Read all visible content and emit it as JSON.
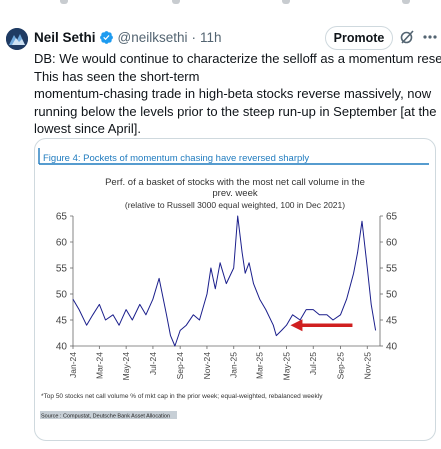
{
  "tweet": {
    "author_name": "Neil Sethi",
    "handle": "@neilksethi",
    "separator": "·",
    "time": "11h",
    "promote_label": "Promote",
    "text_lines": [
      "DB: We would continue to characterize the selloff as a momentum reset.",
      "This has seen the short-term",
      "momentum-chasing trade in high-beta stocks reverse massively, now",
      "running below the levels prior to the steep run-up in September [at the",
      "lowest since April]."
    ],
    "icons": {
      "verified": "verified-badge-icon",
      "grok": "grok-icon",
      "more": "more-options-icon"
    },
    "colors": {
      "verified": "#1d9bf0",
      "text": "#0f1419",
      "muted": "#536471"
    }
  },
  "figure": {
    "figure_title": "Figure 4: Pockets of momentum chasing have reversed sharply",
    "footnote": "*Top 50 stocks net call volume % of mkt cap in the prior week; equal-weighted, rebalanced weekly",
    "source": "Source : Compustat, Deutsche Bank Asset Allocation",
    "colors": {
      "line": "#1b1f8c",
      "title": "#1f7bbf",
      "arrow": "#d02020"
    }
  },
  "chart_data": {
    "type": "line",
    "title_lines": [
      "Perf. of a basket of stocks with the most net call volume in the",
      "prev. week"
    ],
    "subtitle": "(relative to Russell 3000 equal weighted, 100 in Dec  2021)",
    "xlabel": "",
    "ylabel": "",
    "ylim": [
      40,
      65
    ],
    "yticks": [
      40,
      45,
      50,
      55,
      60,
      65
    ],
    "y_axes": "left and right",
    "grid": false,
    "x_start": "2024-01-01",
    "x_end": "2025-11-30",
    "xticks": [
      "Jan-24",
      "Mar-24",
      "May-24",
      "Jul-24",
      "Sep-24",
      "Nov-24",
      "Jan-25",
      "Mar-25",
      "May-25",
      "Jul-25",
      "Sep-25",
      "Nov-25"
    ],
    "series": [
      {
        "name": "",
        "x": [
          "2024-01-01",
          "2024-01-15",
          "2024-02-01",
          "2024-02-15",
          "2024-03-01",
          "2024-03-15",
          "2024-04-01",
          "2024-04-15",
          "2024-05-01",
          "2024-05-15",
          "2024-06-01",
          "2024-06-15",
          "2024-07-01",
          "2024-07-15",
          "2024-08-01",
          "2024-08-10",
          "2024-08-20",
          "2024-09-01",
          "2024-09-15",
          "2024-10-01",
          "2024-10-15",
          "2024-11-01",
          "2024-11-10",
          "2024-11-20",
          "2024-12-01",
          "2024-12-15",
          "2025-01-01",
          "2025-01-10",
          "2025-01-20",
          "2025-01-27",
          "2025-02-05",
          "2025-02-15",
          "2025-03-01",
          "2025-03-15",
          "2025-04-01",
          "2025-04-08",
          "2025-04-20",
          "2025-05-01",
          "2025-05-15",
          "2025-06-01",
          "2025-06-15",
          "2025-07-01",
          "2025-07-15",
          "2025-08-01",
          "2025-08-15",
          "2025-09-01",
          "2025-09-15",
          "2025-10-01",
          "2025-10-10",
          "2025-10-20",
          "2025-11-01",
          "2025-11-10",
          "2025-11-20"
        ],
        "values": [
          49,
          47,
          44,
          46,
          48,
          45,
          46,
          44,
          47,
          45,
          48,
          46,
          49,
          53,
          46,
          42,
          40,
          43,
          44,
          46,
          45,
          50,
          55,
          51,
          56,
          52,
          55,
          65,
          58,
          54,
          56,
          52,
          49,
          47,
          44,
          42,
          43,
          44,
          46,
          45,
          47,
          47,
          46,
          46,
          45,
          46,
          49,
          54,
          58,
          64,
          55,
          48,
          43
        ]
      }
    ],
    "annotation": {
      "type": "arrow",
      "points_to": "2025-05-01",
      "value": 44
    }
  }
}
